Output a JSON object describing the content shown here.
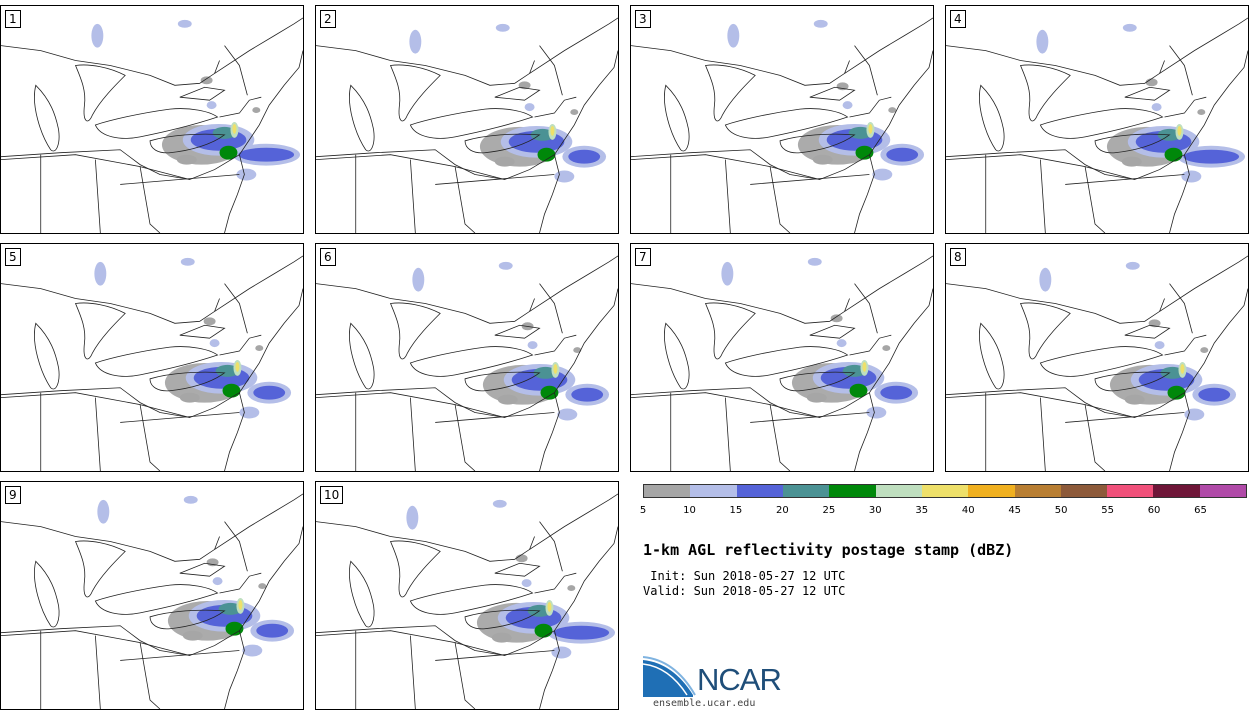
{
  "panels": [
    {
      "label": "1"
    },
    {
      "label": "2"
    },
    {
      "label": "3"
    },
    {
      "label": "4"
    },
    {
      "label": "5"
    },
    {
      "label": "6"
    },
    {
      "label": "7"
    },
    {
      "label": "8"
    },
    {
      "label": "9"
    },
    {
      "label": "10"
    }
  ],
  "legend": {
    "colors": [
      "#a6a6a6",
      "#b4bee8",
      "#5563d8",
      "#4b9294",
      "#00880a",
      "#bfdfbf",
      "#eee06a",
      "#f0b020",
      "#b87e32",
      "#8d5a3a",
      "#f0507a",
      "#6e1638",
      "#b04aa8"
    ],
    "ticks": [
      "5",
      "10",
      "15",
      "20",
      "25",
      "30",
      "35",
      "40",
      "45",
      "50",
      "55",
      "60",
      "65"
    ]
  },
  "title": "1-km AGL reflectivity postage stamp (dBZ)",
  "init_line": " Init: Sun 2018-05-27 12 UTC",
  "valid_line": "Valid: Sun 2018-05-27 12 UTC",
  "logo": {
    "name": "NCAR",
    "url": "ensemble.ucar.edu"
  }
}
